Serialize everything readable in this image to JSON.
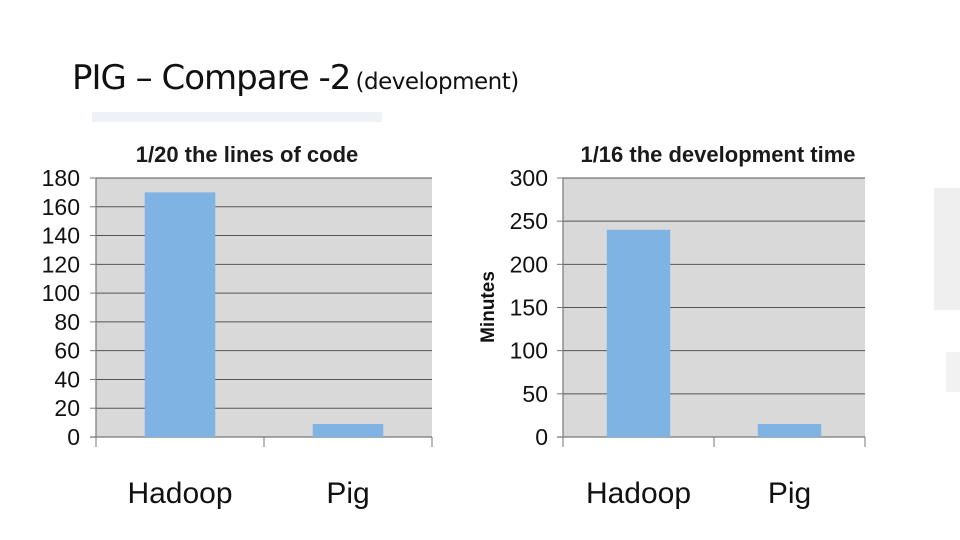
{
  "slide": {
    "title_main": "PIG – Compare -2",
    "title_sub": "(development)"
  },
  "colors": {
    "bar": "#7fb3e3",
    "plot_bg": "#d9d9d9",
    "gridline": "#555555"
  },
  "chart_data": [
    {
      "type": "bar",
      "title": "1/20 the lines of code",
      "categories": [
        "Hadoop",
        "Pig"
      ],
      "values": [
        170,
        9
      ],
      "ylim": [
        0,
        180
      ],
      "yticks": [
        0,
        20,
        40,
        60,
        80,
        100,
        120,
        140,
        160,
        180
      ],
      "xlabel": "",
      "ylabel": "",
      "grid": true,
      "legend": "none"
    },
    {
      "type": "bar",
      "title": "1/16 the development time",
      "categories": [
        "Hadoop",
        "Pig"
      ],
      "values": [
        240,
        15
      ],
      "ylim": [
        0,
        300
      ],
      "yticks": [
        0,
        50,
        100,
        150,
        200,
        250,
        300
      ],
      "xlabel": "",
      "ylabel": "Minutes",
      "grid": true,
      "legend": "none"
    }
  ]
}
